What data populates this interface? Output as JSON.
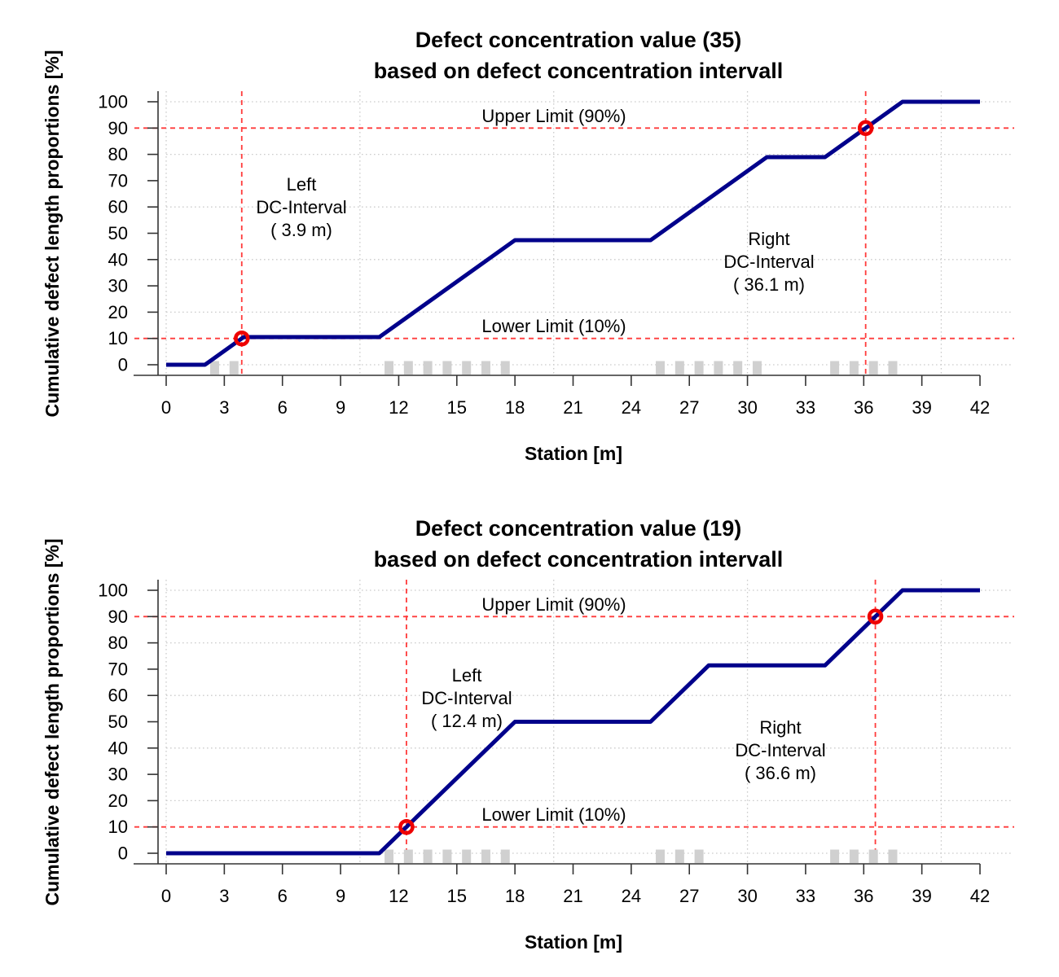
{
  "chart_data": [
    {
      "type": "line",
      "title_lines": [
        "Defect concentration value (35)",
        "based on defect concentration intervall"
      ],
      "xlabel": "Station [m]",
      "ylabel": "Cumulative defect length proportions [%]",
      "xlim": [
        0,
        42
      ],
      "ylim": [
        0,
        100
      ],
      "x_ticks": [
        0,
        3,
        6,
        9,
        12,
        15,
        18,
        21,
        24,
        27,
        30,
        33,
        36,
        39,
        42
      ],
      "y_ticks": [
        0,
        10,
        20,
        30,
        40,
        50,
        60,
        70,
        80,
        90,
        100
      ],
      "grid_x": [
        0,
        10,
        20,
        30,
        40
      ],
      "grid_y": [
        0,
        20,
        40,
        60,
        80,
        100
      ],
      "line_points": [
        [
          0,
          0
        ],
        [
          2,
          0
        ],
        [
          4,
          10.53
        ],
        [
          11,
          10.53
        ],
        [
          18,
          47.37
        ],
        [
          25,
          47.37
        ],
        [
          31,
          78.95
        ],
        [
          34,
          78.95
        ],
        [
          38,
          100
        ],
        [
          42,
          100
        ]
      ],
      "upper_limit": {
        "value": 90,
        "label": "Upper Limit (90%)",
        "label_x": 20
      },
      "lower_limit": {
        "value": 10,
        "label": "Lower Limit (10%)",
        "label_x": 20
      },
      "crossing_markers": [
        {
          "x": 3.9,
          "y": 10
        },
        {
          "x": 36.1,
          "y": 90
        }
      ],
      "vlines": [
        3.9,
        36.1
      ],
      "annotations": {
        "left": {
          "x": 7.0,
          "y_center": 60,
          "lines": [
            "Left",
            "DC-Interval",
            "( 3.9 m)"
          ]
        },
        "right": {
          "x": 31.1,
          "y_center": 39.3,
          "lines": [
            "Right",
            "DC-Interval",
            "( 36.1 m)"
          ]
        }
      },
      "rug_marks": [
        2.5,
        3.5,
        11.5,
        12.5,
        13.5,
        14.5,
        15.5,
        16.5,
        17.5,
        25.5,
        26.5,
        27.5,
        28.5,
        29.5,
        30.5,
        34.5,
        35.5,
        36.5,
        37.5
      ]
    },
    {
      "type": "line",
      "title_lines": [
        "Defect concentration value (19)",
        "based on defect concentration intervall"
      ],
      "xlabel": "Station [m]",
      "ylabel": "Cumulative defect length proportions [%]",
      "xlim": [
        0,
        42
      ],
      "ylim": [
        0,
        100
      ],
      "x_ticks": [
        0,
        3,
        6,
        9,
        12,
        15,
        18,
        21,
        24,
        27,
        30,
        33,
        36,
        39,
        42
      ],
      "y_ticks": [
        0,
        10,
        20,
        30,
        40,
        50,
        60,
        70,
        80,
        90,
        100
      ],
      "grid_x": [
        0,
        10,
        20,
        30,
        40
      ],
      "grid_y": [
        0,
        20,
        40,
        60,
        80,
        100
      ],
      "line_points": [
        [
          0,
          0
        ],
        [
          11,
          0
        ],
        [
          18,
          50
        ],
        [
          25,
          50
        ],
        [
          28,
          71.43
        ],
        [
          34,
          71.43
        ],
        [
          38,
          100
        ],
        [
          42,
          100
        ]
      ],
      "upper_limit": {
        "value": 90,
        "label": "Upper Limit (90%)",
        "label_x": 20
      },
      "lower_limit": {
        "value": 10,
        "label": "Lower Limit (10%)",
        "label_x": 20
      },
      "crossing_markers": [
        {
          "x": 12.4,
          "y": 10
        },
        {
          "x": 36.6,
          "y": 90
        }
      ],
      "vlines": [
        12.4,
        36.6
      ],
      "annotations": {
        "left": {
          "x": 15.5,
          "y_center": 59.1,
          "lines": [
            "Left",
            "DC-Interval",
            "( 12.4 m)"
          ]
        },
        "right": {
          "x": 31.7,
          "y_center": 39.2,
          "lines": [
            "Right",
            "DC-Interval",
            "( 36.6 m)"
          ]
        }
      },
      "rug_marks": [
        11.5,
        12.5,
        13.5,
        14.5,
        15.5,
        16.5,
        17.5,
        25.5,
        26.5,
        27.5,
        34.5,
        35.5,
        36.5,
        37.5
      ]
    }
  ],
  "colors": {
    "series_line": "#00008B",
    "limit_dash": "#FF3B3B",
    "marker_ring": "#EE0000",
    "grid_dot": "#CCCCCC",
    "rug_fill": "#D0D0D0",
    "axis": "#333333"
  }
}
